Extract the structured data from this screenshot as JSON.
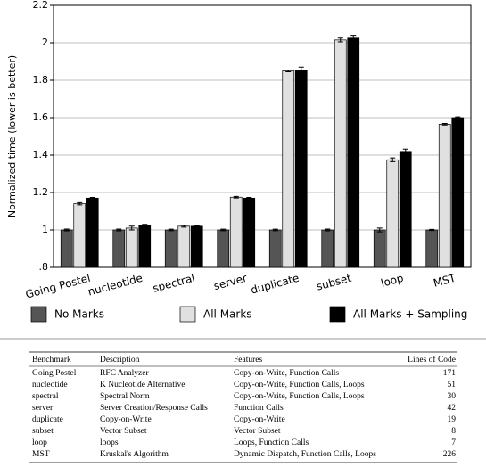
{
  "chart_data": {
    "type": "bar",
    "y_label": "Normalized time (lower is better)",
    "categories": [
      "Going Postel",
      "nucleotide",
      "spectral",
      "server",
      "duplicate",
      "subset",
      "loop",
      "MST"
    ],
    "series": [
      {
        "name": "No Marks",
        "color": "#555555",
        "values": [
          1,
          1,
          1,
          1,
          1,
          1,
          1,
          1
        ],
        "errors": [
          0.005,
          0.005,
          0.004,
          0.004,
          0.004,
          0.005,
          0.01,
          0.003
        ]
      },
      {
        "name": "All Marks",
        "color": "#e0e0e0",
        "values": [
          1.14,
          1.01,
          1.02,
          1.175,
          1.85,
          2.015,
          1.375,
          1.565
        ],
        "errors": [
          0.006,
          0.01,
          0.005,
          0.004,
          0.005,
          0.01,
          0.01,
          0.004
        ]
      },
      {
        "name": "All Marks + Sampling",
        "color": "#000000",
        "values": [
          1.17,
          1.025,
          1.02,
          1.17,
          1.855,
          2.025,
          1.42,
          1.6
        ],
        "errors": [
          0.004,
          0.005,
          0.004,
          0.004,
          0.015,
          0.015,
          0.012,
          0.004
        ]
      }
    ],
    "ylim": [
      0.8,
      2.2
    ],
    "yticks": [
      {
        "value": 0.8,
        "label": ".8"
      },
      1,
      1.2,
      1.4,
      1.6,
      1.8,
      2,
      2.2
    ],
    "grid": true
  },
  "table": {
    "header": [
      "Benchmark",
      "Description",
      "Features",
      "Lines of Code"
    ],
    "rows": [
      [
        "Going Postel",
        "RFC Analyzer",
        "Copy-on-Write, Function Calls",
        171
      ],
      [
        "nucleotide",
        "K Nucleotide Alternative",
        "Copy-on-Write, Function Calls, Loops",
        51
      ],
      [
        "spectral",
        "Spectral Norm",
        "Copy-on-Write, Function Calls, Loops",
        30
      ],
      [
        "server",
        "Server Creation/Response Calls",
        "Function Calls",
        42
      ],
      [
        "duplicate",
        "Copy-on-Write",
        "Copy-on-Write",
        19
      ],
      [
        "subset",
        "Vector Subset",
        "Vector Subset",
        8
      ],
      [
        "loop",
        "loops",
        "Loops, Function Calls",
        7
      ],
      [
        "MST",
        "Kruskal's Algorithm",
        "Dynamic Dispatch, Function Calls, Loops",
        226
      ]
    ]
  }
}
